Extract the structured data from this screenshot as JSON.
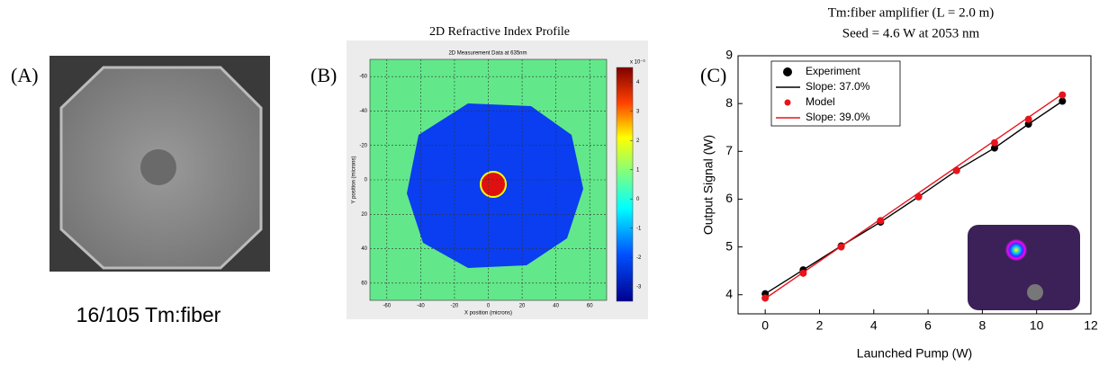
{
  "chart_data": [
    {
      "type": "image",
      "label": "(A)",
      "caption": "16/105 Tm:fiber"
    },
    {
      "type": "heatmap",
      "label": "(B)",
      "title": "2D Refractive Index Profile",
      "subtitle": "2D Measurement Data at 635nm",
      "xlabel": "X position (microns)",
      "ylabel": "Y position (microns)",
      "xlim": [
        -70,
        70
      ],
      "ylim": [
        70,
        -70
      ],
      "xticks": [
        -60,
        -40,
        -20,
        0,
        20,
        40,
        60
      ],
      "yticks": [
        -60,
        -40,
        -20,
        0,
        20,
        40,
        60
      ],
      "colorbar_label": "x 10⁻³",
      "colorbar_lim": [
        -3.5,
        4.5
      ],
      "colorbar_ticks": [
        -3,
        -2,
        -1,
        0,
        1,
        2,
        3,
        4
      ],
      "grid": true
    },
    {
      "type": "line",
      "label": "(C)",
      "title": "Tm:fiber amplifier (L = 2.0 m)",
      "subtitle": "Seed = 4.6 W at 2053 nm",
      "xlabel": "Launched Pump (W)",
      "ylabel": "Output Signal (W)",
      "xlim": [
        -1,
        12
      ],
      "ylim": [
        3.6,
        9
      ],
      "xticks": [
        0,
        2,
        4,
        6,
        8,
        10,
        12
      ],
      "yticks": [
        4,
        5,
        6,
        7,
        8,
        9
      ],
      "series": [
        {
          "name": "Experiment",
          "mode": "markers",
          "color": "#000000",
          "x": [
            0,
            1.4,
            2.8,
            4.25,
            5.65,
            7.05,
            8.45,
            9.7,
            10.95
          ],
          "values": [
            4.02,
            4.52,
            5.02,
            5.52,
            6.05,
            6.6,
            7.07,
            7.57,
            8.05
          ]
        },
        {
          "name": "Slope: 37.0%",
          "mode": "line",
          "color": "#000000",
          "x": [
            0,
            1.4,
            2.8,
            4.25,
            5.65,
            7.05,
            8.45,
            9.7,
            10.95
          ],
          "values": [
            4.02,
            4.52,
            5.02,
            5.52,
            6.05,
            6.6,
            7.07,
            7.57,
            8.05
          ]
        },
        {
          "name": "Model",
          "mode": "markers",
          "color": "#e8141b",
          "x": [
            0,
            1.4,
            2.8,
            4.25,
            5.65,
            7.05,
            8.45,
            9.7,
            10.95
          ],
          "values": [
            3.93,
            4.45,
            5.0,
            5.55,
            6.05,
            6.6,
            7.18,
            7.67,
            8.18
          ]
        },
        {
          "name": "Slope: 39.0%",
          "mode": "line",
          "color": "#e8141b",
          "x": [
            0,
            10.95
          ],
          "values": [
            3.92,
            8.2
          ]
        }
      ]
    }
  ]
}
